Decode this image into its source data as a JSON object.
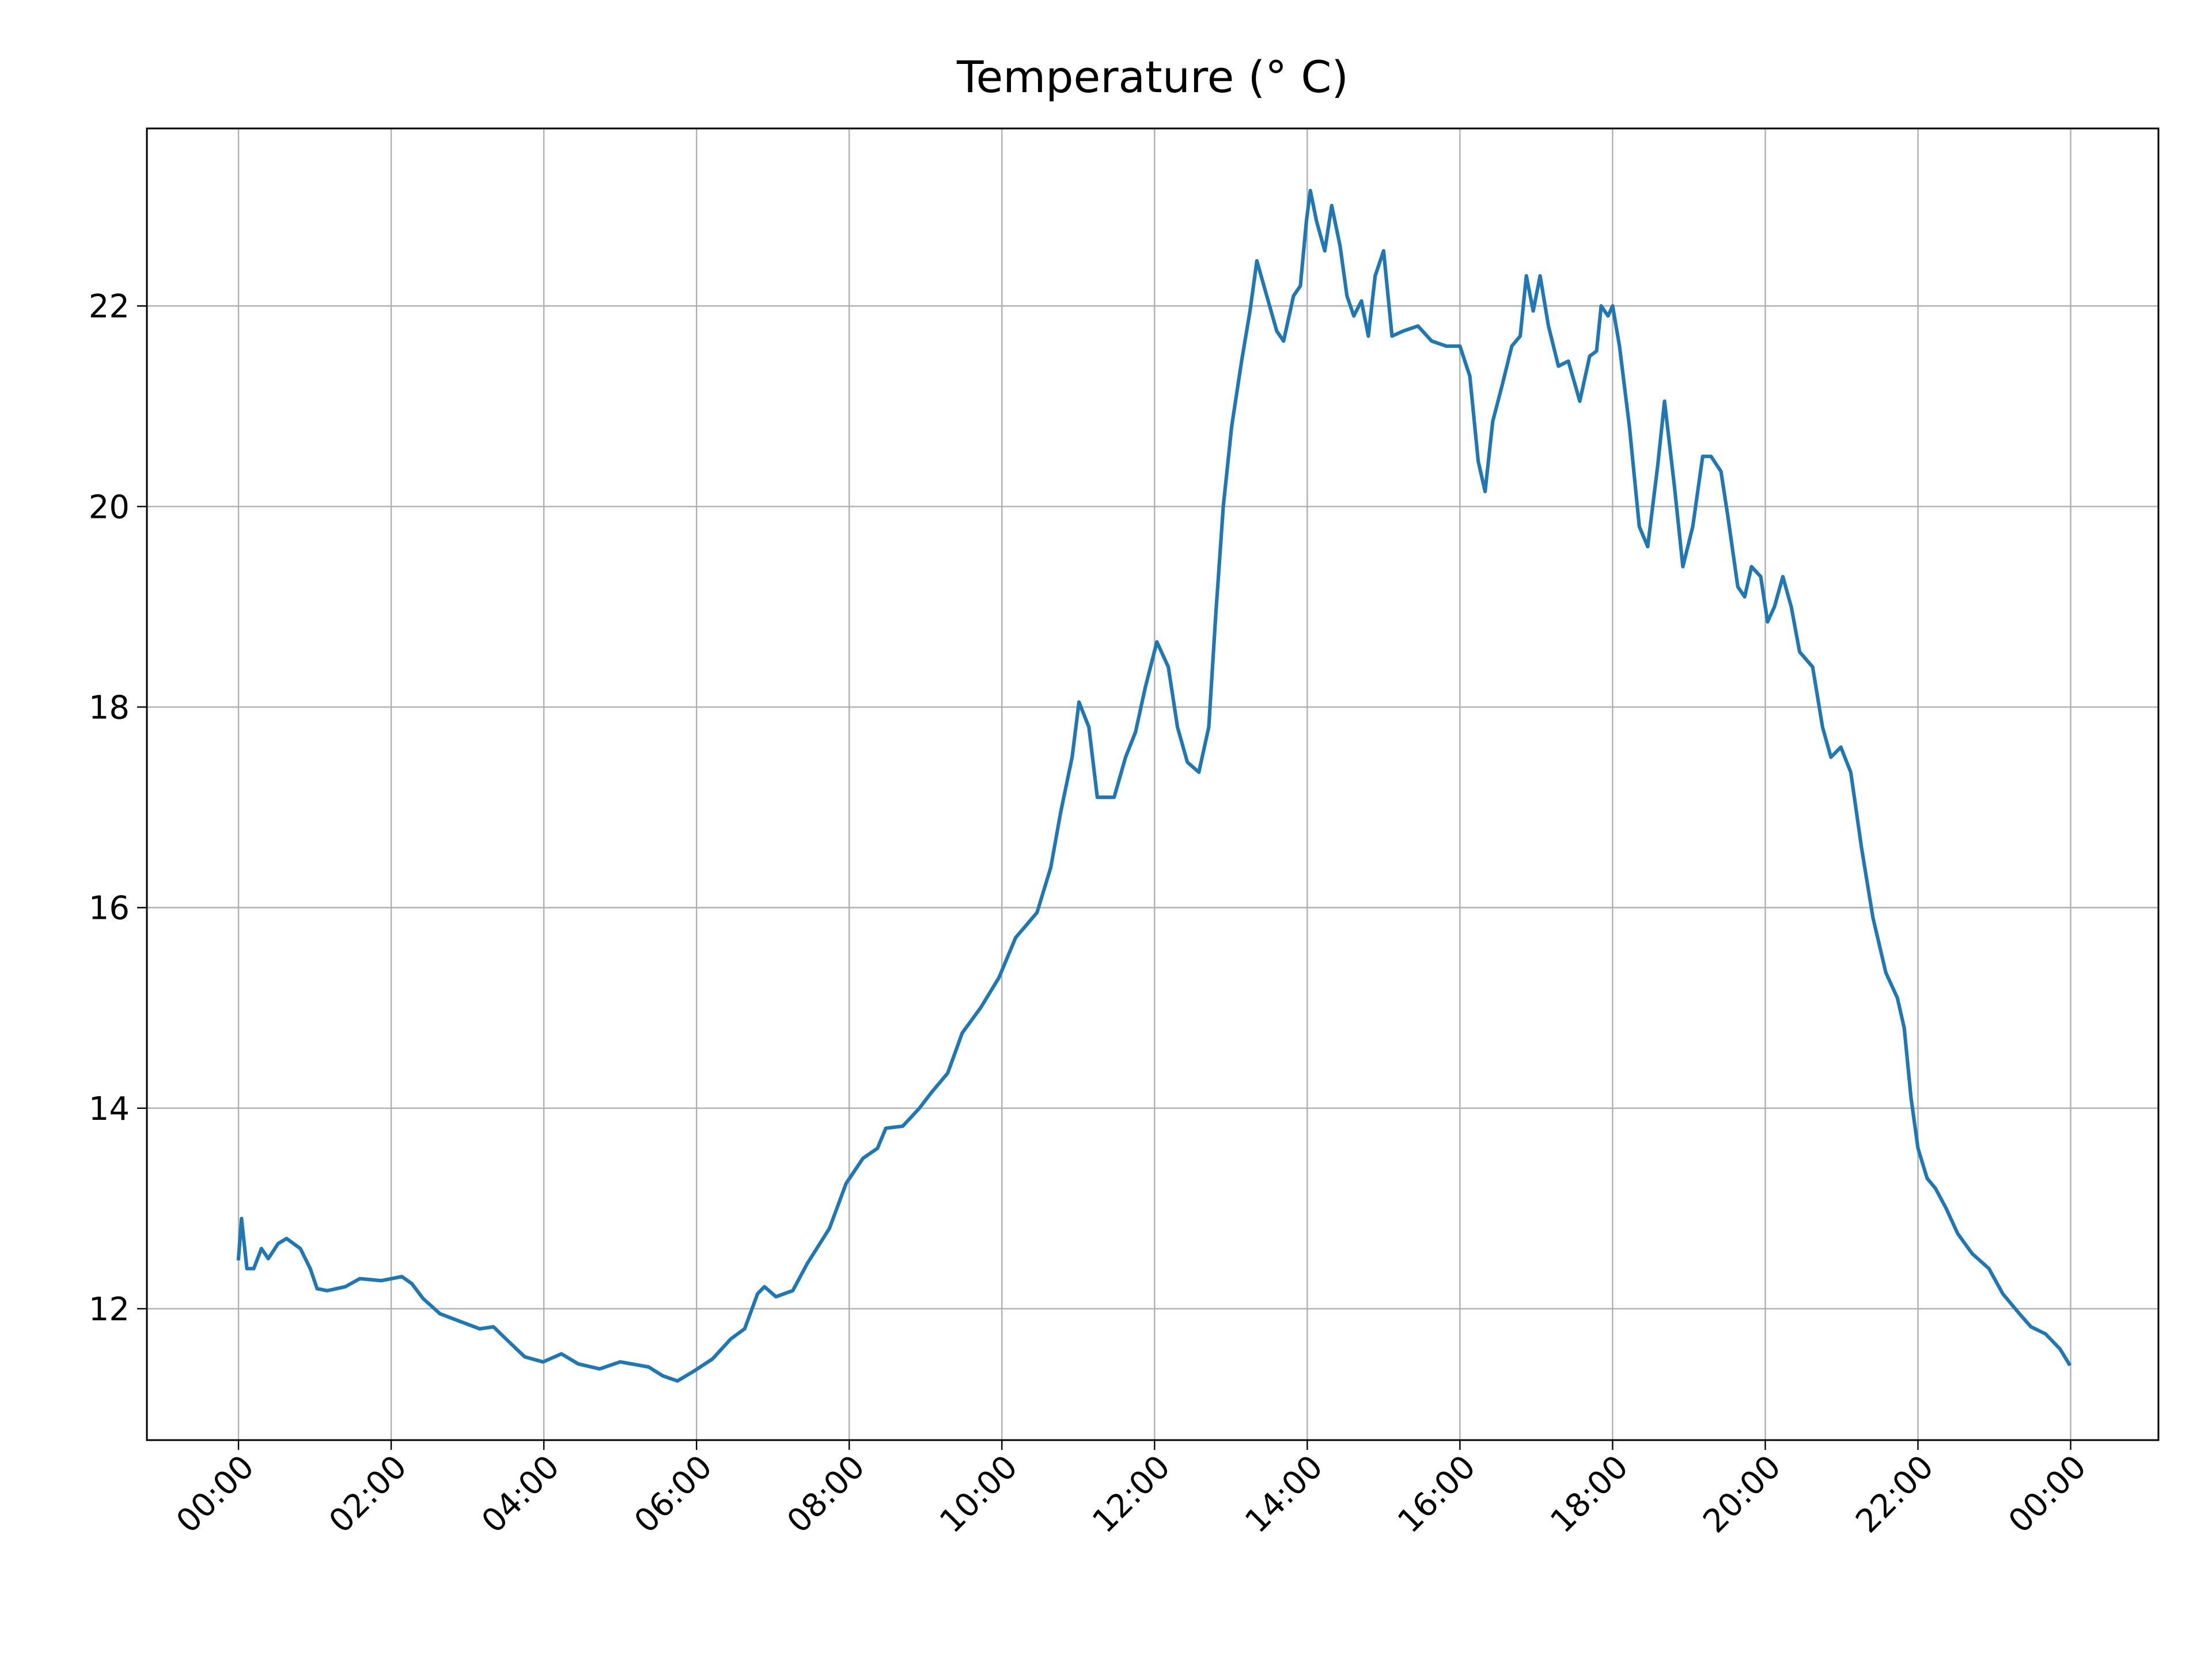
{
  "chart_data": {
    "type": "line",
    "title": "Temperature (° C)",
    "x": [
      0,
      0.04,
      0.11,
      0.2,
      0.3,
      0.39,
      0.52,
      0.63,
      0.81,
      0.94,
      1.03,
      1.16,
      1.4,
      1.59,
      1.87,
      2.14,
      2.27,
      2.42,
      2.64,
      2.88,
      3.16,
      3.34,
      3.53,
      3.75,
      3.99,
      4.23,
      4.45,
      4.73,
      5.0,
      5.37,
      5.56,
      5.75,
      5.97,
      6.21,
      6.45,
      6.63,
      6.8,
      6.89,
      7.04,
      7.26,
      7.45,
      7.74,
      7.96,
      8.18,
      8.37,
      8.48,
      8.7,
      8.92,
      9.07,
      9.29,
      9.48,
      9.72,
      9.96,
      10.18,
      10.46,
      10.64,
      10.77,
      10.92,
      11.01,
      11.14,
      11.25,
      11.47,
      11.62,
      11.75,
      11.88,
      12.03,
      12.18,
      12.3,
      12.43,
      12.58,
      12.71,
      12.8,
      12.9,
      13.01,
      13.14,
      13.25,
      13.34,
      13.47,
      13.6,
      13.69,
      13.82,
      13.91,
      13.99,
      14.04,
      14.12,
      14.23,
      14.32,
      14.43,
      14.52,
      14.61,
      14.71,
      14.8,
      14.89,
      15.0,
      15.11,
      15.26,
      15.45,
      15.63,
      15.82,
      16.0,
      16.13,
      16.24,
      16.33,
      16.43,
      16.55,
      16.68,
      16.79,
      16.87,
      16.96,
      17.05,
      17.16,
      17.29,
      17.42,
      17.57,
      17.7,
      17.79,
      17.85,
      17.94,
      18.0,
      18.09,
      18.22,
      18.35,
      18.46,
      18.59,
      18.68,
      18.81,
      18.92,
      19.05,
      19.18,
      19.29,
      19.42,
      19.51,
      19.64,
      19.73,
      19.82,
      19.94,
      20.03,
      20.12,
      20.23,
      20.34,
      20.45,
      20.62,
      20.75,
      20.86,
      20.99,
      21.12,
      21.26,
      21.41,
      21.58,
      21.73,
      21.82,
      21.91,
      22.0,
      22.12,
      22.23,
      22.37,
      22.52,
      22.71,
      22.93,
      23.11,
      23.33,
      23.48,
      23.67,
      23.86,
      23.98
    ],
    "values": [
      12.5,
      12.9,
      12.4,
      12.4,
      12.6,
      12.5,
      12.65,
      12.7,
      12.6,
      12.4,
      12.2,
      12.18,
      12.22,
      12.3,
      12.28,
      12.32,
      12.25,
      12.1,
      11.95,
      11.88,
      11.8,
      11.82,
      11.68,
      11.52,
      11.47,
      11.55,
      11.45,
      11.4,
      11.47,
      11.42,
      11.33,
      11.28,
      11.38,
      11.5,
      11.7,
      11.8,
      12.15,
      12.22,
      12.12,
      12.18,
      12.45,
      12.8,
      13.25,
      13.5,
      13.6,
      13.8,
      13.82,
      14.0,
      14.15,
      14.35,
      14.75,
      15.0,
      15.3,
      15.7,
      15.95,
      16.4,
      16.95,
      17.5,
      18.05,
      17.8,
      17.1,
      17.1,
      17.5,
      17.75,
      18.2,
      18.65,
      18.4,
      17.8,
      17.45,
      17.35,
      17.8,
      18.9,
      20.0,
      20.8,
      21.45,
      21.95,
      22.45,
      22.1,
      21.75,
      21.65,
      22.1,
      22.2,
      22.85,
      23.15,
      22.85,
      22.55,
      23.0,
      22.6,
      22.1,
      21.9,
      22.05,
      21.7,
      22.3,
      22.55,
      21.7,
      21.75,
      21.8,
      21.65,
      21.6,
      21.6,
      21.3,
      20.45,
      20.15,
      20.85,
      21.2,
      21.6,
      21.7,
      22.3,
      21.95,
      22.3,
      21.8,
      21.4,
      21.45,
      21.05,
      21.5,
      21.55,
      22.0,
      21.9,
      22.0,
      21.6,
      20.8,
      19.8,
      19.6,
      20.4,
      21.05,
      20.2,
      19.4,
      19.8,
      20.5,
      20.5,
      20.35,
      19.9,
      19.2,
      19.1,
      19.4,
      19.3,
      18.85,
      19.0,
      19.3,
      19.0,
      18.55,
      18.4,
      17.8,
      17.5,
      17.6,
      17.35,
      16.6,
      15.9,
      15.35,
      15.1,
      14.8,
      14.1,
      13.6,
      13.3,
      13.2,
      13.0,
      12.75,
      12.55,
      12.4,
      12.15,
      11.95,
      11.82,
      11.75,
      11.6,
      11.45
    ],
    "color": "#1f77b4",
    "xlim": [
      -1.2,
      25.15
    ],
    "xticks": [
      {
        "value": 0,
        "label": "00:00"
      },
      {
        "value": 2,
        "label": "02:00"
      },
      {
        "value": 4,
        "label": "04:00"
      },
      {
        "value": 6,
        "label": "06:00"
      },
      {
        "value": 8,
        "label": "08:00"
      },
      {
        "value": 10,
        "label": "10:00"
      },
      {
        "value": 12,
        "label": "12:00"
      },
      {
        "value": 14,
        "label": "14:00"
      },
      {
        "value": 16,
        "label": "16:00"
      },
      {
        "value": 18,
        "label": "18:00"
      },
      {
        "value": 20,
        "label": "20:00"
      },
      {
        "value": 22,
        "label": "22:00"
      },
      {
        "value": 24,
        "label": "00:00"
      }
    ],
    "ylim": [
      10.69,
      23.77
    ],
    "yticks": [
      12,
      14,
      16,
      18,
      20,
      22
    ],
    "grid": true
  }
}
